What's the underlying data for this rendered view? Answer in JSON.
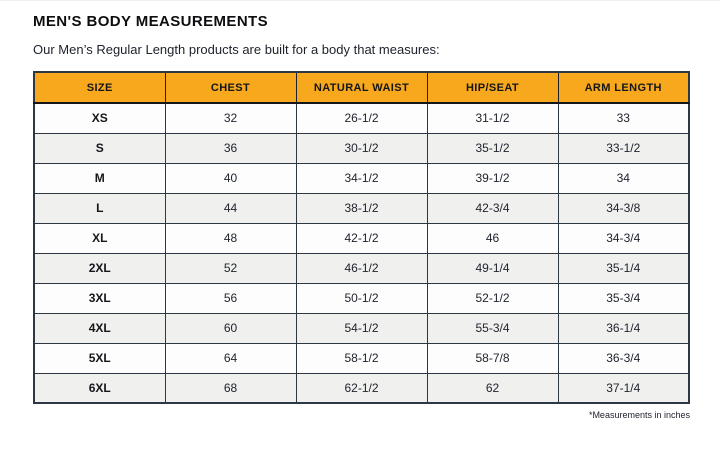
{
  "page": {
    "title": "MEN'S BODY MEASUREMENTS",
    "subtitle": "Our Men’s Regular Length products are built for a body that measures:",
    "footnote": "*Measurements in inches"
  },
  "chart_data": {
    "type": "table",
    "title": "MEN'S BODY MEASUREMENTS",
    "columns": [
      "SIZE",
      "CHEST",
      "NATURAL WAIST",
      "HIP/SEAT",
      "ARM LENGTH"
    ],
    "rows": [
      [
        "XS",
        "32",
        "26-1/2",
        "31-1/2",
        "33"
      ],
      [
        "S",
        "36",
        "30-1/2",
        "35-1/2",
        "33-1/2"
      ],
      [
        "M",
        "40",
        "34-1/2",
        "39-1/2",
        "34"
      ],
      [
        "L",
        "44",
        "38-1/2",
        "42-3/4",
        "34-3/8"
      ],
      [
        "XL",
        "48",
        "42-1/2",
        "46",
        "34-3/4"
      ],
      [
        "2XL",
        "52",
        "46-1/2",
        "49-1/4",
        "35-1/4"
      ],
      [
        "3XL",
        "56",
        "50-1/2",
        "52-1/2",
        "35-3/4"
      ],
      [
        "4XL",
        "60",
        "54-1/2",
        "55-3/4",
        "36-1/4"
      ],
      [
        "5XL",
        "64",
        "58-1/2",
        "58-7/8",
        "36-3/4"
      ],
      [
        "6XL",
        "68",
        "62-1/2",
        "62",
        "37-1/4"
      ]
    ],
    "units": "inches",
    "layout_hints": {
      "striped_rows": true,
      "header_position": "top",
      "size_column_bold": true
    }
  },
  "colors": {
    "header_bg": "#F7A81C",
    "header_text": "#15161a",
    "body_text": "#20242e",
    "row_bg": "#fdfdfd",
    "row_alt_bg": "#f0f0ee",
    "border": "#2e3744",
    "page_bg": "#ffffff"
  }
}
